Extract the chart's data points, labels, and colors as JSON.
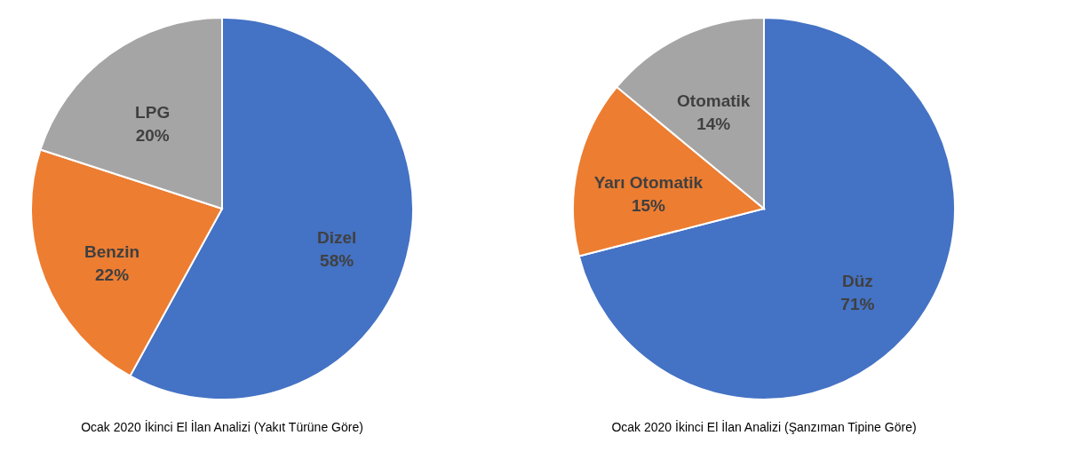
{
  "chart_data": [
    {
      "type": "pie",
      "title": "Ocak 2020 İkinci El İlan Analizi (Yakıt Türüne Göre)",
      "categories": [
        "Dizel",
        "Benzin",
        "LPG"
      ],
      "values": [
        58,
        22,
        20
      ],
      "colors": [
        "#4472c4",
        "#ed7d31",
        "#a5a5a5"
      ],
      "value_labels": [
        "58%",
        "22%",
        "20%"
      ]
    },
    {
      "type": "pie",
      "title": "Ocak 2020 İkinci El İlan Analizi (Şanzıman Tipine Göre)",
      "categories": [
        "Düz",
        "Yarı Otomatik",
        "Otomatik"
      ],
      "values": [
        71,
        15,
        14
      ],
      "colors": [
        "#4472c4",
        "#ed7d31",
        "#a5a5a5"
      ],
      "value_labels": [
        "71%",
        "15%",
        "14%"
      ]
    }
  ]
}
